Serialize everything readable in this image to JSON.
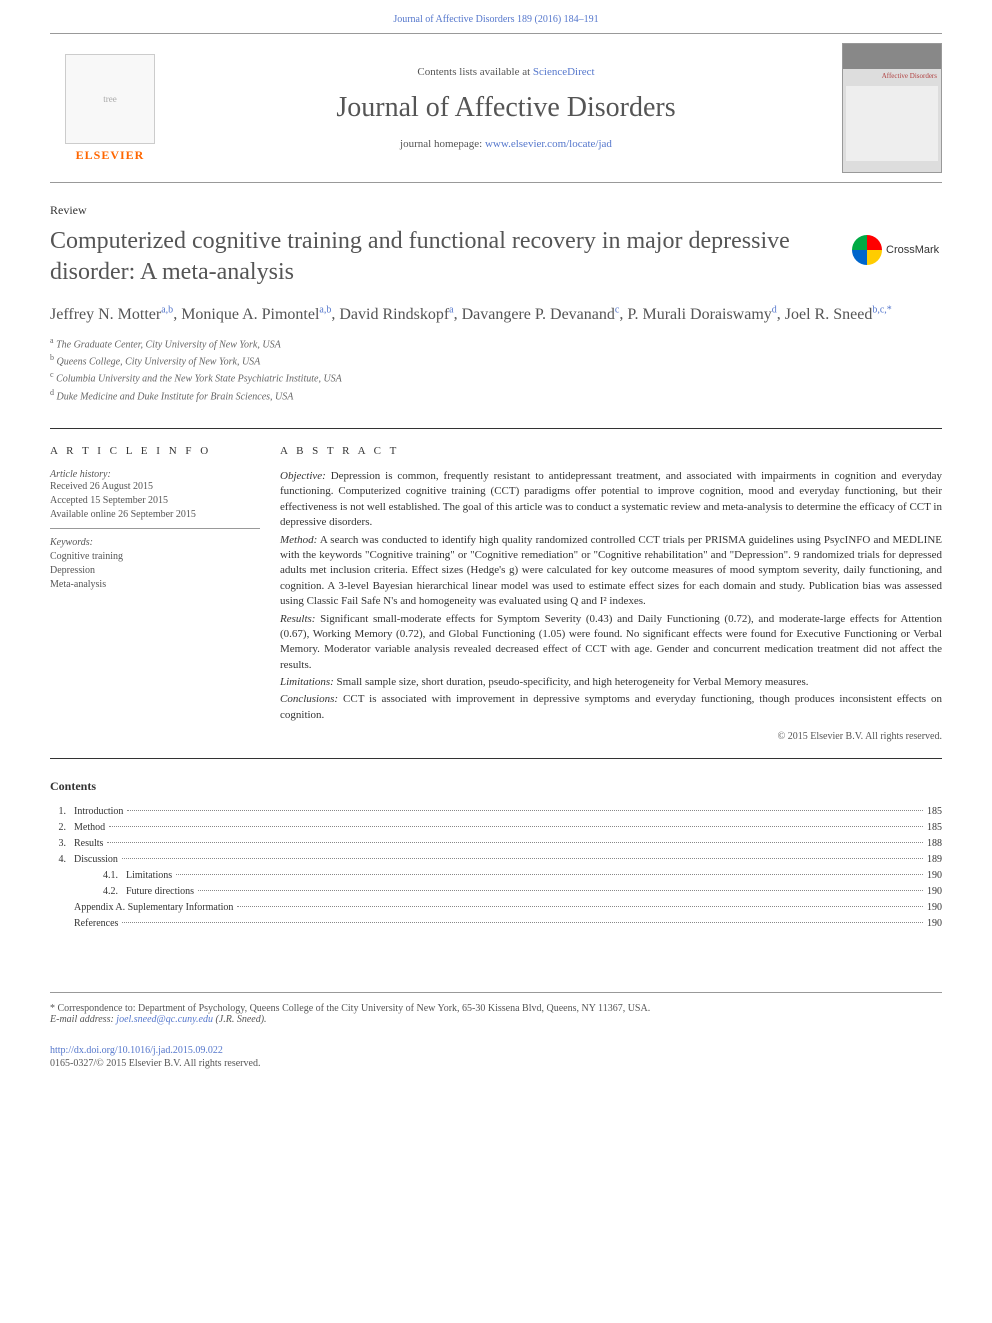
{
  "top_citation": "Journal of Affective Disorders 189 (2016) 184–191",
  "header": {
    "contents_line_prefix": "Contents lists available at ",
    "contents_link": "ScienceDirect",
    "journal_name": "Journal of Affective Disorders",
    "homepage_prefix": "journal homepage: ",
    "homepage_link": "www.elsevier.com/locate/jad",
    "elsevier_label": "ELSEVIER",
    "cover_title": "Affective\nDisorders"
  },
  "article_type": "Review",
  "title": "Computerized cognitive training and functional recovery in major depressive disorder: A meta-analysis",
  "crossmark": "CrossMark",
  "authors": [
    {
      "name": "Jeffrey N. Motter",
      "aff": "a,b"
    },
    {
      "name": "Monique A. Pimontel",
      "aff": "a,b"
    },
    {
      "name": "David Rindskopf",
      "aff": "a"
    },
    {
      "name": "Davangere P. Devanand",
      "aff": "c"
    },
    {
      "name": "P. Murali Doraiswamy",
      "aff": "d"
    },
    {
      "name": "Joel R. Sneed",
      "aff": "b,c,*"
    }
  ],
  "affiliations": [
    {
      "sup": "a",
      "text": "The Graduate Center, City University of New York, USA"
    },
    {
      "sup": "b",
      "text": "Queens College, City University of New York, USA"
    },
    {
      "sup": "c",
      "text": "Columbia University and the New York State Psychiatric Institute, USA"
    },
    {
      "sup": "d",
      "text": "Duke Medicine and Duke Institute for Brain Sciences, USA"
    }
  ],
  "article_info_heading": "A R T I C L E  I N F O",
  "history": {
    "label": "Article history:",
    "items": [
      "Received 26 August 2015",
      "Accepted 15 September 2015",
      "Available online 26 September 2015"
    ]
  },
  "keywords_label": "Keywords:",
  "keywords": [
    "Cognitive training",
    "Depression",
    "Meta-analysis"
  ],
  "abstract_heading": "A B S T R A C T",
  "abstract": {
    "objective": {
      "label": "Objective:",
      "text": "Depression is common, frequently resistant to antidepressant treatment, and associated with impairments in cognition and everyday functioning. Computerized cognitive training (CCT) paradigms offer potential to improve cognition, mood and everyday functioning, but their effectiveness is not well established. The goal of this article was to conduct a systematic review and meta-analysis to determine the efficacy of CCT in depressive disorders."
    },
    "method": {
      "label": "Method:",
      "text": "A search was conducted to identify high quality randomized controlled CCT trials per PRISMA guidelines using PsycINFO and MEDLINE with the keywords \"Cognitive training\" or \"Cognitive remediation\" or \"Cognitive rehabilitation\" and \"Depression\". 9 randomized trials for depressed adults met inclusion criteria. Effect sizes (Hedge's g) were calculated for key outcome measures of mood symptom severity, daily functioning, and cognition. A 3-level Bayesian hierarchical linear model was used to estimate effect sizes for each domain and study. Publication bias was assessed using Classic Fail Safe N's and homogeneity was evaluated using Q and I² indexes."
    },
    "results": {
      "label": "Results:",
      "text": "Significant small-moderate effects for Symptom Severity (0.43) and Daily Functioning (0.72), and moderate-large effects for Attention (0.67), Working Memory (0.72), and Global Functioning (1.05) were found. No significant effects were found for Executive Functioning or Verbal Memory. Moderator variable analysis revealed decreased effect of CCT with age. Gender and concurrent medication treatment did not affect the results."
    },
    "limitations": {
      "label": "Limitations:",
      "text": "Small sample size, short duration, pseudo-specificity, and high heterogeneity for Verbal Memory measures."
    },
    "conclusions": {
      "label": "Conclusions:",
      "text": "CCT is associated with improvement in depressive symptoms and everyday functioning, though produces inconsistent effects on cognition."
    },
    "copyright": "© 2015 Elsevier B.V. All rights reserved."
  },
  "contents_heading": "Contents",
  "toc": [
    {
      "num": "1.",
      "label": "Introduction",
      "page": "185",
      "level": 1
    },
    {
      "num": "2.",
      "label": "Method",
      "page": "185",
      "level": 1
    },
    {
      "num": "3.",
      "label": "Results",
      "page": "188",
      "level": 1
    },
    {
      "num": "4.",
      "label": "Discussion",
      "page": "189",
      "level": 1
    },
    {
      "num": "4.1.",
      "label": "Limitations",
      "page": "190",
      "level": 2
    },
    {
      "num": "4.2.",
      "label": "Future directions",
      "page": "190",
      "level": 2
    },
    {
      "num": "",
      "label": "Appendix A.   Suplementary Information",
      "page": "190",
      "level": 1
    },
    {
      "num": "",
      "label": "References",
      "page": "190",
      "level": 1
    }
  ],
  "correspondence": {
    "marker": "*",
    "text": "Correspondence to: Department of Psychology, Queens College of the City University of New York, 65-30 Kissena Blvd, Queens, NY 11367, USA.",
    "email_label": "E-mail address:",
    "email": "joel.sneed@qc.cuny.edu",
    "email_suffix": "(J.R. Sneed)."
  },
  "doi": "http://dx.doi.org/10.1016/j.jad.2015.09.022",
  "issn_line": "0165-0327/© 2015 Elsevier B.V. All rights reserved."
}
